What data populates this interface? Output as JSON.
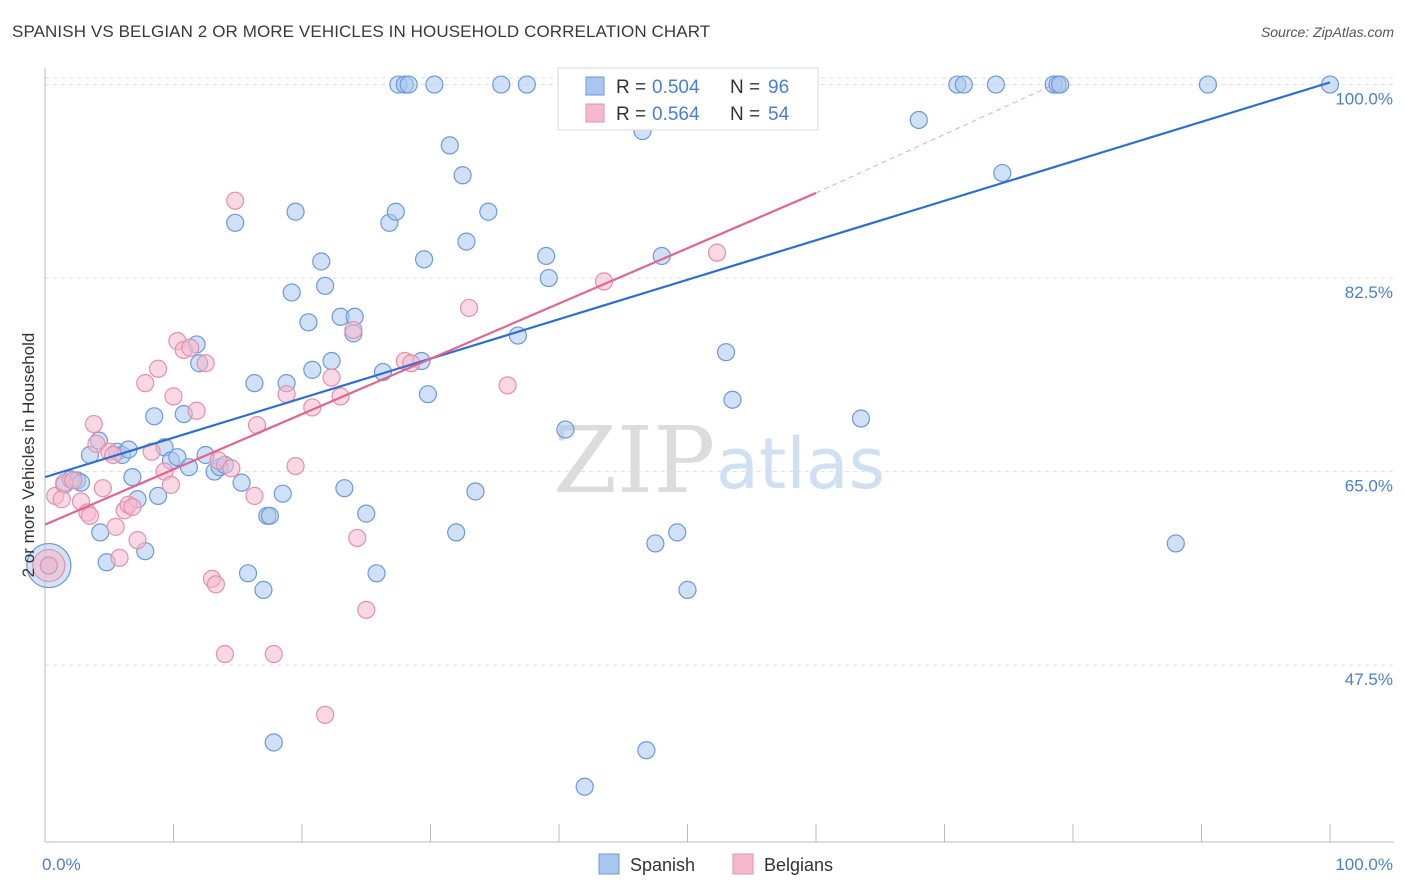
{
  "header": {
    "title": "SPANISH VS BELGIAN 2 OR MORE VEHICLES IN HOUSEHOLD CORRELATION CHART",
    "source": "Source: ZipAtlas.com"
  },
  "watermark": {
    "zip": "ZIP",
    "atlas": "atlas"
  },
  "legend_top": {
    "spanish": {
      "r_label": "R = ",
      "r_value": "0.504",
      "n_label": "N = ",
      "n_value": "96"
    },
    "belgians": {
      "r_label": "R = ",
      "r_value": "0.564",
      "n_label": "N = ",
      "n_value": "54"
    }
  },
  "legend_bottom": {
    "spanish": "Spanish",
    "belgians": "Belgians"
  },
  "colors": {
    "spanish_fill": "#a9c7ee",
    "spanish_stroke": "#6b9ad8",
    "spanish_line": "#2f6fcc",
    "belgian_fill": "#f5b8cc",
    "belgian_stroke": "#e58fab",
    "belgian_line": "#e06690",
    "tick_text": "#4a7fd0",
    "grid": "#dddddd"
  },
  "chart_data": {
    "type": "scatter",
    "title": "SPANISH VS BELGIAN 2 OR MORE VEHICLES IN HOUSEHOLD CORRELATION CHART",
    "xlabel": "",
    "ylabel": "2 or more Vehicles in Household",
    "xlim": [
      0,
      100
    ],
    "ylim": [
      31.5,
      101.5
    ],
    "x_tick_labels": [
      "0.0%",
      "100.0%"
    ],
    "y_ticks": [
      47.5,
      65.0,
      82.5,
      100.0
    ],
    "y_tick_labels": [
      "47.5%",
      "65.0%",
      "82.5%",
      "100.0%"
    ],
    "grid": "horizontal dashed",
    "legend": "top-center",
    "series": [
      {
        "name": "Spanish",
        "r": 0.504,
        "n": 96,
        "trend": {
          "x": [
            0,
            100
          ],
          "y": [
            64.5,
            100.2
          ]
        },
        "points": [
          [
            0.3,
            56.5
          ],
          [
            1.5,
            63.8
          ],
          [
            2.0,
            64.3
          ],
          [
            2.5,
            64.2
          ],
          [
            2.8,
            64.0
          ],
          [
            3.5,
            66.5
          ],
          [
            4.2,
            67.8
          ],
          [
            4.3,
            59.5
          ],
          [
            4.8,
            56.8
          ],
          [
            5.6,
            66.8
          ],
          [
            6.0,
            66.5
          ],
          [
            6.5,
            67.0
          ],
          [
            6.8,
            64.5
          ],
          [
            7.2,
            62.5
          ],
          [
            7.8,
            57.8
          ],
          [
            8.5,
            70.0
          ],
          [
            8.8,
            62.8
          ],
          [
            9.3,
            67.2
          ],
          [
            9.8,
            66.0
          ],
          [
            10.3,
            66.3
          ],
          [
            10.8,
            70.2
          ],
          [
            11.2,
            65.4
          ],
          [
            11.8,
            76.5
          ],
          [
            12.0,
            74.8
          ],
          [
            12.5,
            66.5
          ],
          [
            13.2,
            65.0
          ],
          [
            13.6,
            65.4
          ],
          [
            14.0,
            65.6
          ],
          [
            14.8,
            87.5
          ],
          [
            15.3,
            64.0
          ],
          [
            15.8,
            55.8
          ],
          [
            16.3,
            73.0
          ],
          [
            17.0,
            54.3
          ],
          [
            17.3,
            61.0
          ],
          [
            17.5,
            61.0
          ],
          [
            17.8,
            40.5
          ],
          [
            18.5,
            63.0
          ],
          [
            18.8,
            73.0
          ],
          [
            19.2,
            81.2
          ],
          [
            19.5,
            88.5
          ],
          [
            20.5,
            78.5
          ],
          [
            20.8,
            74.2
          ],
          [
            21.5,
            84.0
          ],
          [
            21.8,
            81.8
          ],
          [
            22.3,
            75.0
          ],
          [
            23.0,
            79.0
          ],
          [
            23.3,
            63.5
          ],
          [
            24.0,
            77.5
          ],
          [
            24.1,
            79.0
          ],
          [
            25.0,
            61.2
          ],
          [
            25.8,
            55.8
          ],
          [
            26.3,
            74.0
          ],
          [
            26.8,
            87.5
          ],
          [
            27.3,
            88.5
          ],
          [
            27.5,
            100.0
          ],
          [
            28.0,
            100.0
          ],
          [
            28.3,
            100.0
          ],
          [
            29.3,
            75.0
          ],
          [
            29.5,
            84.2
          ],
          [
            29.8,
            72.0
          ],
          [
            30.3,
            100.0
          ],
          [
            31.5,
            94.5
          ],
          [
            32.0,
            59.5
          ],
          [
            32.5,
            91.8
          ],
          [
            32.8,
            85.8
          ],
          [
            33.5,
            63.2
          ],
          [
            34.5,
            88.5
          ],
          [
            35.5,
            100.0
          ],
          [
            36.8,
            77.3
          ],
          [
            37.5,
            100.0
          ],
          [
            39.0,
            84.5
          ],
          [
            39.2,
            82.5
          ],
          [
            40.5,
            68.8
          ],
          [
            42.0,
            36.5
          ],
          [
            43.0,
            100.0
          ],
          [
            46.5,
            95.8
          ],
          [
            46.8,
            39.8
          ],
          [
            47.5,
            58.5
          ],
          [
            48.0,
            84.5
          ],
          [
            49.2,
            59.5
          ],
          [
            50.0,
            54.3
          ],
          [
            51.5,
            100.0
          ],
          [
            53.0,
            75.8
          ],
          [
            53.5,
            71.5
          ],
          [
            56.5,
            100.0
          ],
          [
            63.5,
            69.8
          ],
          [
            68.0,
            96.8
          ],
          [
            71.0,
            100.0
          ],
          [
            71.5,
            100.0
          ],
          [
            74.0,
            100.0
          ],
          [
            74.5,
            92.0
          ],
          [
            78.5,
            100.0
          ],
          [
            78.8,
            100.0
          ],
          [
            79.0,
            100.0
          ],
          [
            88.0,
            58.5
          ],
          [
            90.5,
            100.0
          ],
          [
            100.0,
            100.0
          ]
        ]
      },
      {
        "name": "Belgians",
        "r": 0.564,
        "n": 54,
        "trend": {
          "x": [
            0,
            60
          ],
          "y": [
            60.2,
            90.2
          ]
        },
        "trend_extension": {
          "x": [
            60,
            78.5
          ],
          "y": [
            90.2,
            100.0
          ]
        },
        "points": [
          [
            0.3,
            56.5
          ],
          [
            0.8,
            62.8
          ],
          [
            1.3,
            62.5
          ],
          [
            1.5,
            64.0
          ],
          [
            2.2,
            64.2
          ],
          [
            2.8,
            62.3
          ],
          [
            3.3,
            61.3
          ],
          [
            3.5,
            61.0
          ],
          [
            3.8,
            69.3
          ],
          [
            4.0,
            67.5
          ],
          [
            4.5,
            63.5
          ],
          [
            5.0,
            66.8
          ],
          [
            5.3,
            66.5
          ],
          [
            5.5,
            60.0
          ],
          [
            5.8,
            57.2
          ],
          [
            6.2,
            61.5
          ],
          [
            6.5,
            62.0
          ],
          [
            6.8,
            61.8
          ],
          [
            7.2,
            58.8
          ],
          [
            7.8,
            73.0
          ],
          [
            8.3,
            66.8
          ],
          [
            8.8,
            74.3
          ],
          [
            9.3,
            65.0
          ],
          [
            9.8,
            63.8
          ],
          [
            10.0,
            71.8
          ],
          [
            10.3,
            76.8
          ],
          [
            10.8,
            76.0
          ],
          [
            11.3,
            76.2
          ],
          [
            11.8,
            70.5
          ],
          [
            12.5,
            74.8
          ],
          [
            13.0,
            55.3
          ],
          [
            13.3,
            54.8
          ],
          [
            13.5,
            66.0
          ],
          [
            14.0,
            48.5
          ],
          [
            14.5,
            65.3
          ],
          [
            14.8,
            89.5
          ],
          [
            16.3,
            62.8
          ],
          [
            16.5,
            69.2
          ],
          [
            17.8,
            48.5
          ],
          [
            18.8,
            72.0
          ],
          [
            19.5,
            65.5
          ],
          [
            20.8,
            70.8
          ],
          [
            21.8,
            43.0
          ],
          [
            22.3,
            73.5
          ],
          [
            23.0,
            71.8
          ],
          [
            24.0,
            77.8
          ],
          [
            24.3,
            59.0
          ],
          [
            25.0,
            52.5
          ],
          [
            28.0,
            75.0
          ],
          [
            28.5,
            74.8
          ],
          [
            33.0,
            79.8
          ],
          [
            36.0,
            72.8
          ],
          [
            43.5,
            82.2
          ],
          [
            52.3,
            84.8
          ]
        ]
      }
    ]
  }
}
